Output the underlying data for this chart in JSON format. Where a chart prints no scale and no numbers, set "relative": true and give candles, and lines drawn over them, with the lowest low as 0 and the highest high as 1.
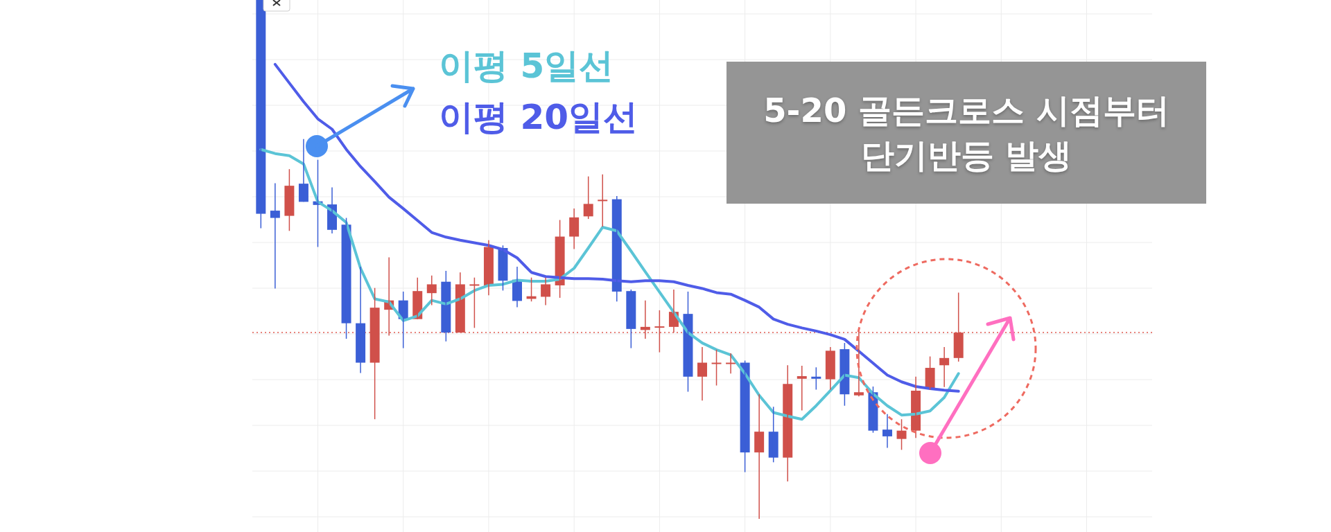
{
  "chart_data": {
    "type": "candlestick",
    "title": "5-20 골든크로스 시점부터 단기반등 발생",
    "relative": true,
    "grid": true,
    "legend": "top",
    "categories": [
      null,
      null,
      null,
      null,
      null,
      null,
      null,
      null,
      null,
      null,
      null,
      null,
      null,
      null,
      null,
      null,
      null,
      null,
      null,
      null,
      null,
      null,
      null,
      null,
      null,
      null,
      null,
      null,
      null,
      null,
      null,
      null,
      null,
      null,
      null,
      null,
      null,
      null,
      null,
      null,
      null,
      null,
      null,
      null,
      null,
      null,
      null,
      null,
      null,
      null,
      null,
      null,
      null,
      null,
      null,
      null,
      null,
      null,
      null,
      null,
      null,
      null,
      null
    ],
    "ohlc": [
      [
        1,
        1,
        0.56,
        0.588
      ],
      [
        0.594,
        0.647,
        0.444,
        0.58
      ],
      [
        0.584,
        0.674,
        0.555,
        0.642
      ],
      [
        0.646,
        0.732,
        0.611,
        0.611
      ],
      [
        0.612,
        0.692,
        0.524,
        0.605
      ],
      [
        0.606,
        0.639,
        0.55,
        0.557
      ],
      [
        0.567,
        0.58,
        0.347,
        0.377
      ],
      [
        0.377,
        0.486,
        0.281,
        0.301
      ],
      [
        0.301,
        0.445,
        0.192,
        0.407
      ],
      [
        0.403,
        0.504,
        0.353,
        0.421
      ],
      [
        0.421,
        0.438,
        0.329,
        0.385
      ],
      [
        0.385,
        0.465,
        0.385,
        0.439
      ],
      [
        0.435,
        0.469,
        0.412,
        0.452
      ],
      [
        0.457,
        0.478,
        0.342,
        0.359
      ],
      [
        0.359,
        0.475,
        0.359,
        0.452
      ],
      [
        0.45,
        0.465,
        0.368,
        0.452
      ],
      [
        0.45,
        0.537,
        0.431,
        0.524
      ],
      [
        0.522,
        0.527,
        0.44,
        0.459
      ],
      [
        0.461,
        0.486,
        0.408,
        0.42
      ],
      [
        0.424,
        0.465,
        0.419,
        0.429
      ],
      [
        0.428,
        0.465,
        0.412,
        0.452
      ],
      [
        0.45,
        0.576,
        0.426,
        0.544
      ],
      [
        0.544,
        0.598,
        0.52,
        0.581
      ],
      [
        0.583,
        0.66,
        0.578,
        0.607
      ],
      [
        0.613,
        0.664,
        0.563,
        0.615
      ],
      [
        0.616,
        0.622,
        0.419,
        0.438
      ],
      [
        0.439,
        0.442,
        0.329,
        0.366
      ],
      [
        0.364,
        0.421,
        0.347,
        0.37
      ],
      [
        0.37,
        0.402,
        0.321,
        0.371
      ],
      [
        0.37,
        0.442,
        0.359,
        0.399
      ],
      [
        0.395,
        0.438,
        0.245,
        0.274
      ],
      [
        0.274,
        0.331,
        0.228,
        0.301
      ],
      [
        0.3,
        0.326,
        0.257,
        0.301
      ],
      [
        0.3,
        0.319,
        0.28,
        0.301
      ],
      [
        0.301,
        0.305,
        0.09,
        0.128
      ],
      [
        0.128,
        0.24,
        0,
        0.168
      ],
      [
        0.168,
        0.216,
        0.109,
        0.118
      ],
      [
        0.118,
        0.296,
        0.072,
        0.26
      ],
      [
        0.27,
        0.295,
        0.209,
        0.275
      ],
      [
        0.274,
        0.292,
        0.249,
        0.27
      ],
      [
        0.269,
        0.331,
        0.249,
        0.324
      ],
      [
        0.327,
        0.339,
        0.218,
        0.24
      ],
      [
        0.238,
        0.366,
        0.236,
        0.244
      ],
      [
        0.244,
        0.255,
        0.166,
        0.17
      ],
      [
        0.172,
        0.202,
        0.137,
        0.159
      ],
      [
        0.154,
        0.192,
        0.133,
        0.17
      ],
      [
        0.17,
        0.274,
        0.156,
        0.247
      ],
      [
        0.251,
        0.313,
        0.249,
        0.291
      ],
      [
        0.296,
        0.331,
        0.254,
        0.31
      ],
      [
        0.31,
        0.436,
        0.303,
        0.359
      ],
      null,
      null,
      null,
      null,
      null,
      null,
      null,
      null,
      null,
      null,
      null,
      null,
      null
    ],
    "colors": [
      "#3b5fd6",
      "#3b5fd6",
      "#d0504a",
      "#3b5fd6",
      "#3b5fd6",
      "#3b5fd6",
      "#3b5fd6",
      "#3b5fd6",
      "#d0504a",
      "#d0504a",
      "#3b5fd6",
      "#d0504a",
      "#d0504a",
      "#3b5fd6",
      "#d0504a",
      "#d0504a",
      "#d0504a",
      "#3b5fd6",
      "#3b5fd6",
      "#d0504a",
      "#d0504a",
      "#d0504a",
      "#d0504a",
      "#d0504a",
      "#d0504a",
      "#3b5fd6",
      "#3b5fd6",
      "#d0504a",
      "#d0504a",
      "#d0504a",
      "#3b5fd6",
      "#d0504a",
      "#d0504a",
      "#d0504a",
      "#3b5fd6",
      "#d0504a",
      "#3b5fd6",
      "#d0504a",
      "#d0504a",
      "#3b5fd6",
      "#d0504a",
      "#3b5fd6",
      "#d0504a",
      "#3b5fd6",
      "#3b5fd6",
      "#d0504a",
      "#d0504a",
      "#d0504a",
      "#d0504a",
      "#d0504a",
      null,
      null,
      null,
      null,
      null,
      null,
      null,
      null,
      null,
      null,
      null,
      null,
      null
    ],
    "series": [
      {
        "type": "line",
        "name": "이평 5일선",
        "color": "#5bc4d6",
        "values": [
          0.712,
          0.704,
          0.7,
          0.684,
          0.611,
          0.594,
          0.571,
          0.483,
          0.424,
          0.418,
          0.382,
          0.391,
          0.421,
          0.414,
          0.424,
          0.44,
          0.45,
          0.452,
          0.46,
          0.458,
          0.458,
          0.462,
          0.483,
          0.522,
          0.562,
          0.555,
          0.516,
          0.476,
          0.437,
          0.398,
          0.359,
          0.339,
          0.326,
          0.316,
          0.28,
          0.238,
          0.205,
          0.198,
          0.192,
          0.218,
          0.247,
          0.277,
          0.272,
          0.241,
          0.218,
          0.2,
          0.202,
          0.208,
          0.234,
          0.28,
          null,
          null,
          null,
          null,
          null,
          null,
          null,
          null,
          null,
          null,
          null,
          null,
          null
        ]
      },
      {
        "type": "line",
        "name": "이평 20일선",
        "color": "#4f5ce8",
        "values": [
          null,
          0.876,
          0.84,
          0.804,
          0.771,
          0.751,
          0.712,
          0.679,
          0.65,
          0.62,
          0.598,
          0.575,
          0.552,
          0.543,
          0.537,
          0.532,
          0.527,
          0.519,
          0.503,
          0.475,
          0.467,
          0.465,
          0.463,
          0.463,
          0.462,
          0.459,
          0.457,
          0.459,
          0.459,
          0.457,
          0.45,
          0.444,
          0.436,
          0.433,
          0.421,
          0.408,
          0.385,
          0.375,
          0.368,
          0.362,
          0.355,
          0.346,
          0.323,
          0.3,
          0.277,
          0.264,
          0.255,
          0.251,
          0.248,
          0.246,
          null,
          null,
          null,
          null,
          null,
          null,
          null,
          null,
          null,
          null,
          null,
          null,
          null
        ]
      }
    ],
    "ref_lines": [
      {
        "axis": "y",
        "value": 0.359,
        "color": "#e05a50",
        "line_style": "dotted"
      }
    ]
  }
}
